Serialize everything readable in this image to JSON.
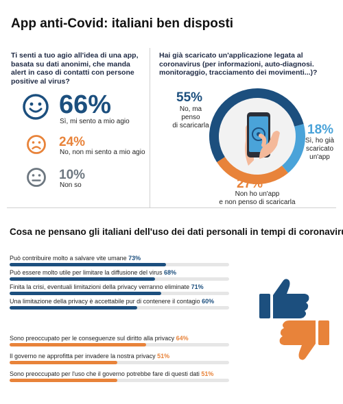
{
  "title": "App anti-Covid: italiani ben disposti",
  "colors": {
    "navy": "#1c4f7e",
    "orange": "#e8833a",
    "gray": "#6d7780",
    "lightblue": "#4aa3d9",
    "track": "#e6e6e6"
  },
  "left_panel": {
    "question": "Ti senti a tuo agio all'idea di una app, basata su dati anonimi, che manda alert in caso di contatti con persone positive al virus?",
    "items": [
      {
        "pct": "66%",
        "label": "Sì, mi sento a mio agio",
        "icon": "smile-icon"
      },
      {
        "pct": "24%",
        "label": "No, non mi sento a mio agio",
        "icon": "frown-icon"
      },
      {
        "pct": "10%",
        "label": "Non so",
        "icon": "neutral-icon"
      }
    ]
  },
  "right_panel": {
    "question": "Hai già scaricato un'applicazione legata al coronavirus (per informazioni, auto-diagnosi. monitoraggio, tracciamento dei movimenti...)?",
    "slices": [
      {
        "pct": "55%",
        "label_lines": [
          "No, ma penso",
          "di scaricarla"
        ],
        "value": 55
      },
      {
        "pct": "18%",
        "label_lines": [
          "Sì, ho già",
          "scaricato",
          "un'app"
        ],
        "value": 18
      },
      {
        "pct": "27%",
        "label_lines": [
          "Non ho un'app",
          "e non penso di scaricarla"
        ],
        "value": 27
      }
    ]
  },
  "chart_data": [
    {
      "type": "pie",
      "title": "Hai già scaricato un'applicazione legata al coronavirus (per informazioni, auto-diagnosi. monitoraggio, tracciamento dei movimenti...)?",
      "categories": [
        "No, ma penso di scaricarla",
        "Sì, ho già scaricato un'app",
        "Non ho un'app e non penso di scaricarla"
      ],
      "values": [
        55,
        18,
        27
      ]
    },
    {
      "type": "bar",
      "title": "Cosa ne pensano gli italiani dell'uso dei dati personali in tempi di coronavirus?",
      "categories": [
        "Può contribuire molto a salvare vite umane",
        "Può essere molto utile per limitare la diffusione del virus",
        "Finita la crisi, eventuali limitazioni della privacy verranno eliminate",
        "Una limitazione della privacy è accettabile pur di contenere il contagio",
        "Sono preoccupato per le conseguenze sul diritto alla privacy",
        "Il governo ne approfitta per invadere la nostra privacy",
        "Sono preoccupato per l'uso che il governo potrebbe fare di questi dati"
      ],
      "values": [
        73,
        68,
        71,
        60,
        64,
        51,
        51
      ],
      "value_labels": [
        "73%",
        "68%",
        "71%",
        "60%",
        "64%",
        "51%",
        "51%"
      ],
      "groups": [
        "positive",
        "positive",
        "positive",
        "positive",
        "negative",
        "negative",
        "negative"
      ],
      "ylim": [
        0,
        100
      ]
    }
  ]
}
